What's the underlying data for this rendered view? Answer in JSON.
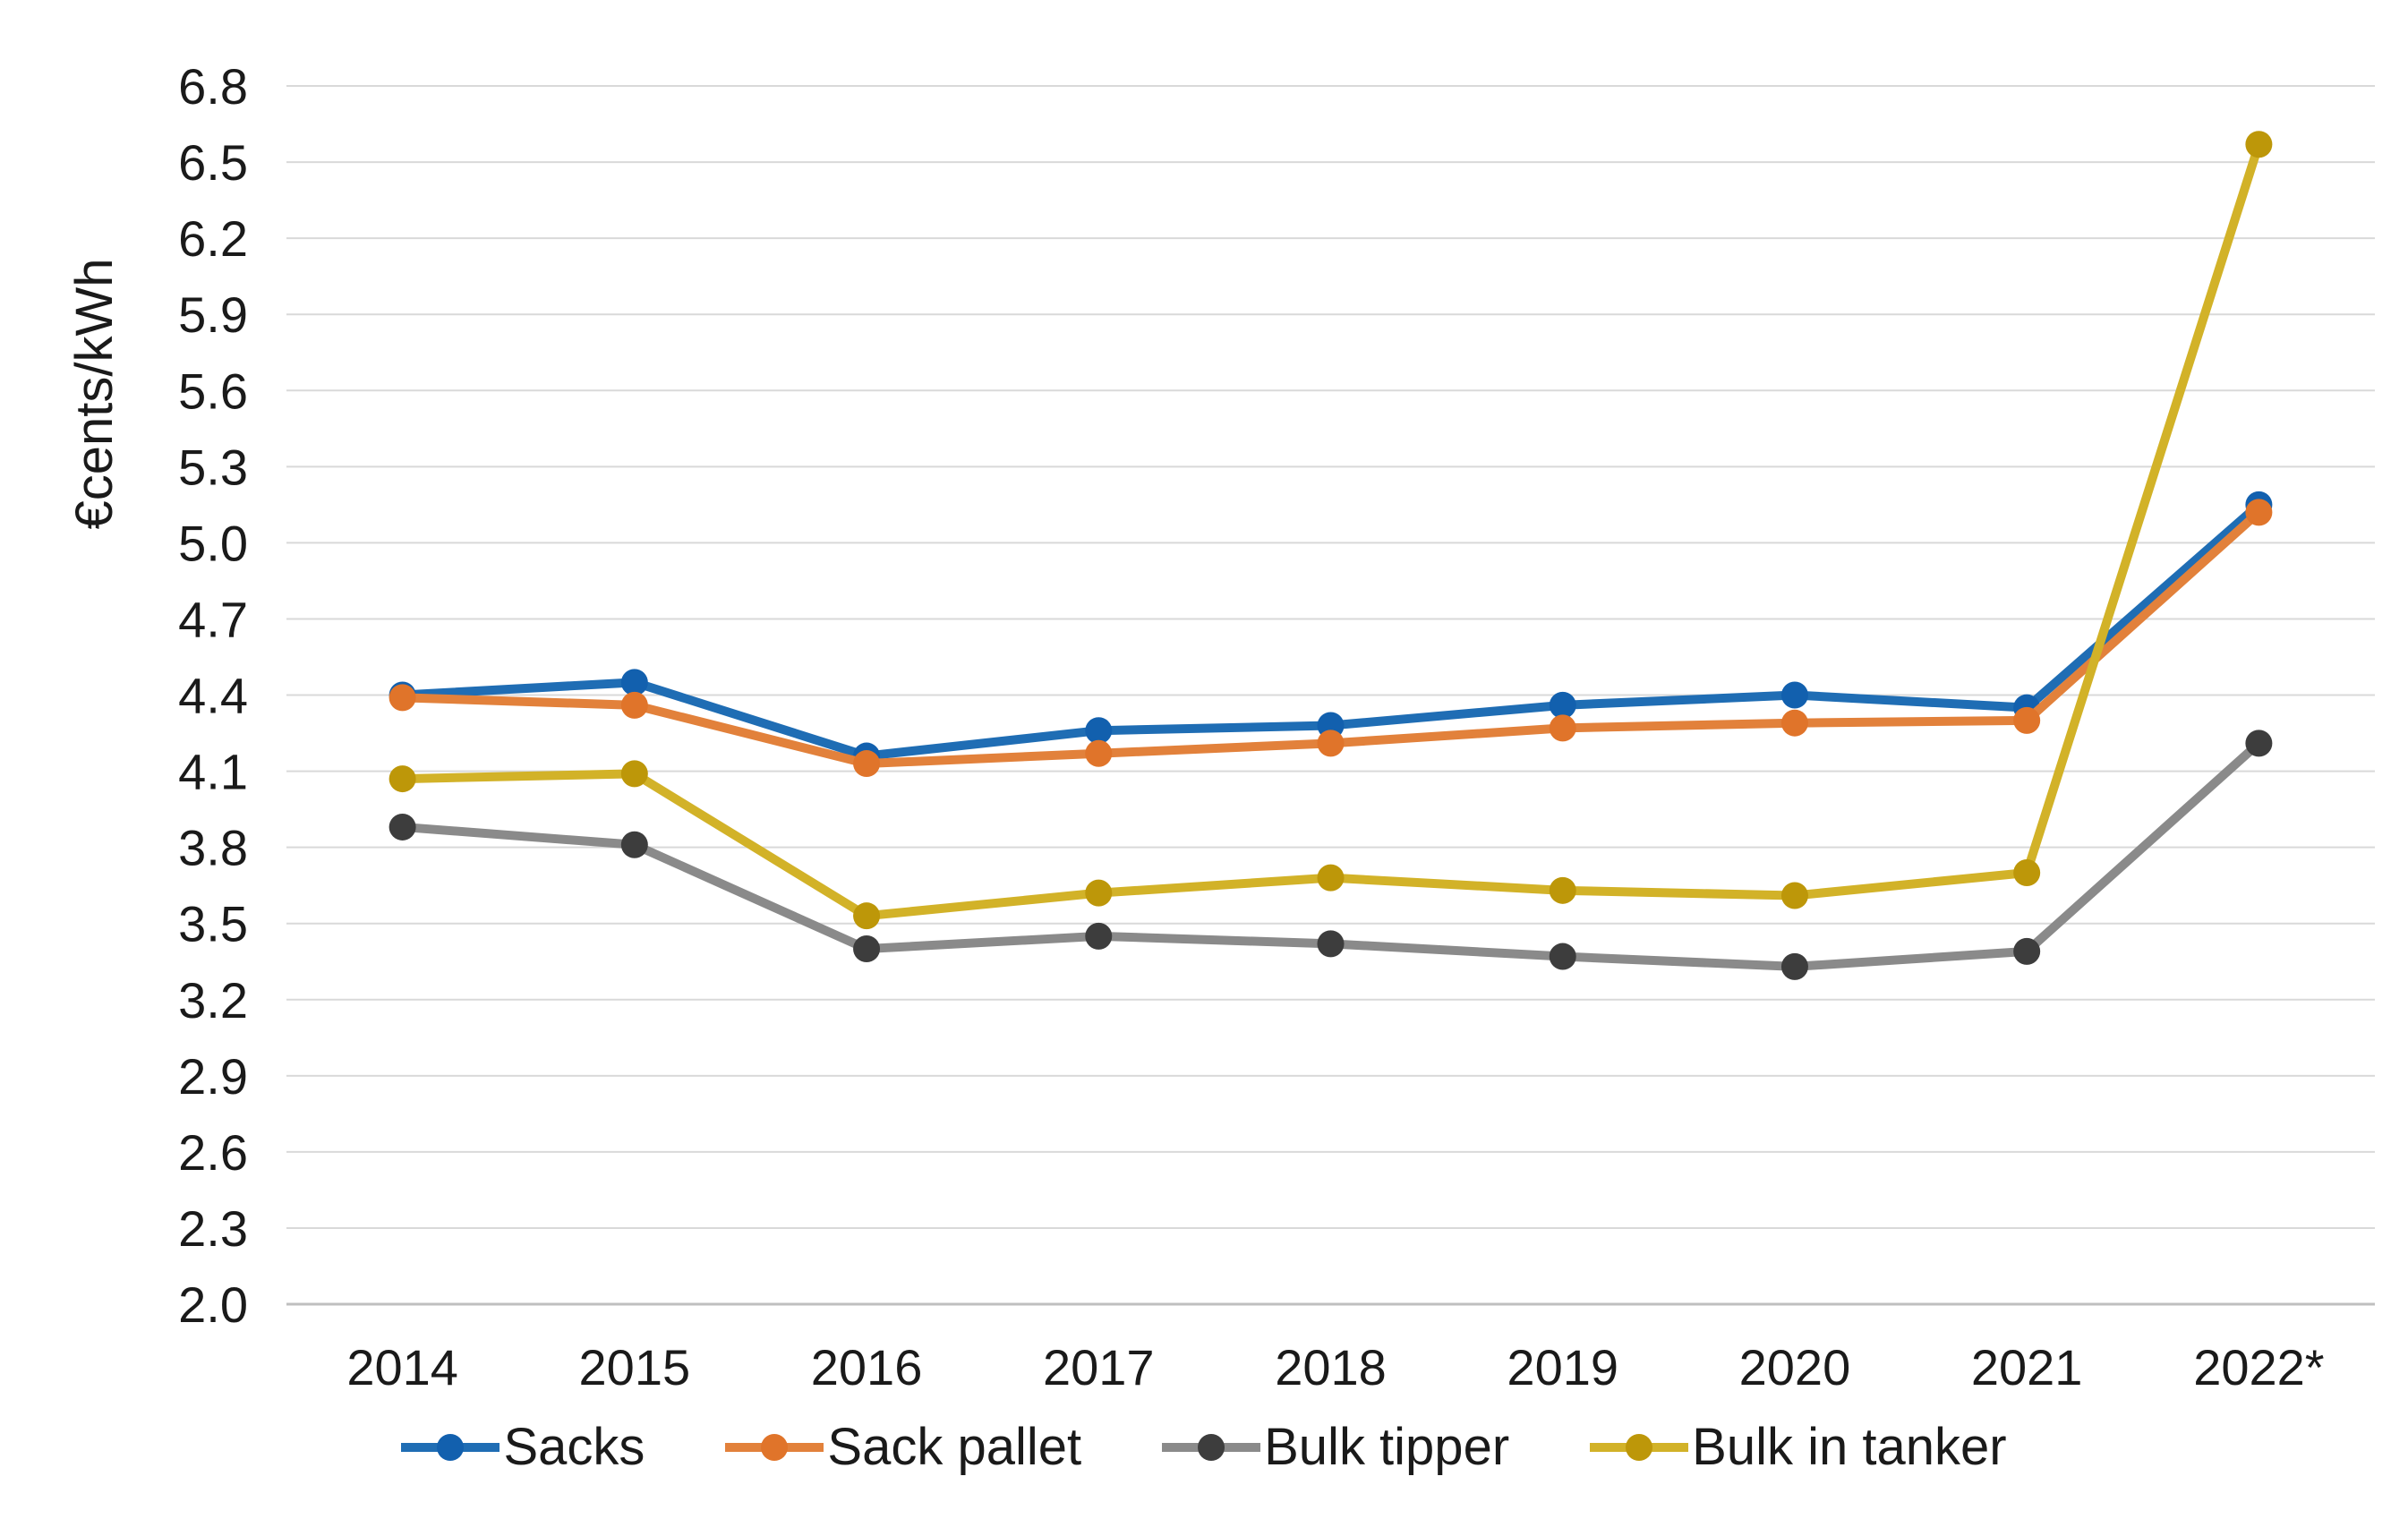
{
  "canvas": {
    "background": "#FFFFFF"
  },
  "chart_data": {
    "type": "line",
    "title": "",
    "xlabel": "",
    "ylabel": "€cents/kWh",
    "categories": [
      "2014",
      "2015",
      "2016",
      "2017",
      "2018",
      "2019",
      "2020",
      "2021",
      "2022*"
    ],
    "y_axis": {
      "min": 2.0,
      "max": 6.8,
      "step": 0.3,
      "tick_labels": [
        "2.0",
        "2.3",
        "2.6",
        "2.9",
        "3.2",
        "3.5",
        "3.8",
        "4.1",
        "4.4",
        "4.7",
        "5.0",
        "5.3",
        "5.6",
        "5.9",
        "6.2",
        "6.5",
        "6.8"
      ]
    },
    "grid": true,
    "gridline_color": "#D9D9D9",
    "baseline_color": "#BFBFBF",
    "text_color": "#1a1a1a",
    "legend_position": "bottom",
    "series": [
      {
        "name": "Sacks",
        "line_color": "#1F6DB4",
        "marker_color": "#1260AE",
        "values": [
          4.4,
          4.45,
          4.16,
          4.26,
          4.28,
          4.36,
          4.4,
          4.35,
          5.15
        ]
      },
      {
        "name": "Sack pallet",
        "line_color": "#E2813B",
        "marker_color": "#E0742A",
        "values": [
          4.39,
          4.36,
          4.13,
          4.17,
          4.21,
          4.27,
          4.29,
          4.3,
          5.12
        ]
      },
      {
        "name": "Bulk tipper",
        "line_color": "#8A8A8A",
        "marker_color": "#3D3D3D",
        "values": [
          3.88,
          3.81,
          3.4,
          3.45,
          3.42,
          3.37,
          3.33,
          3.39,
          4.21
        ]
      },
      {
        "name": "Bulk in tanker",
        "line_color": "#D2B228",
        "marker_color": "#BD9709",
        "values": [
          4.07,
          4.09,
          3.53,
          3.62,
          3.68,
          3.63,
          3.61,
          3.7,
          6.57
        ]
      }
    ]
  }
}
